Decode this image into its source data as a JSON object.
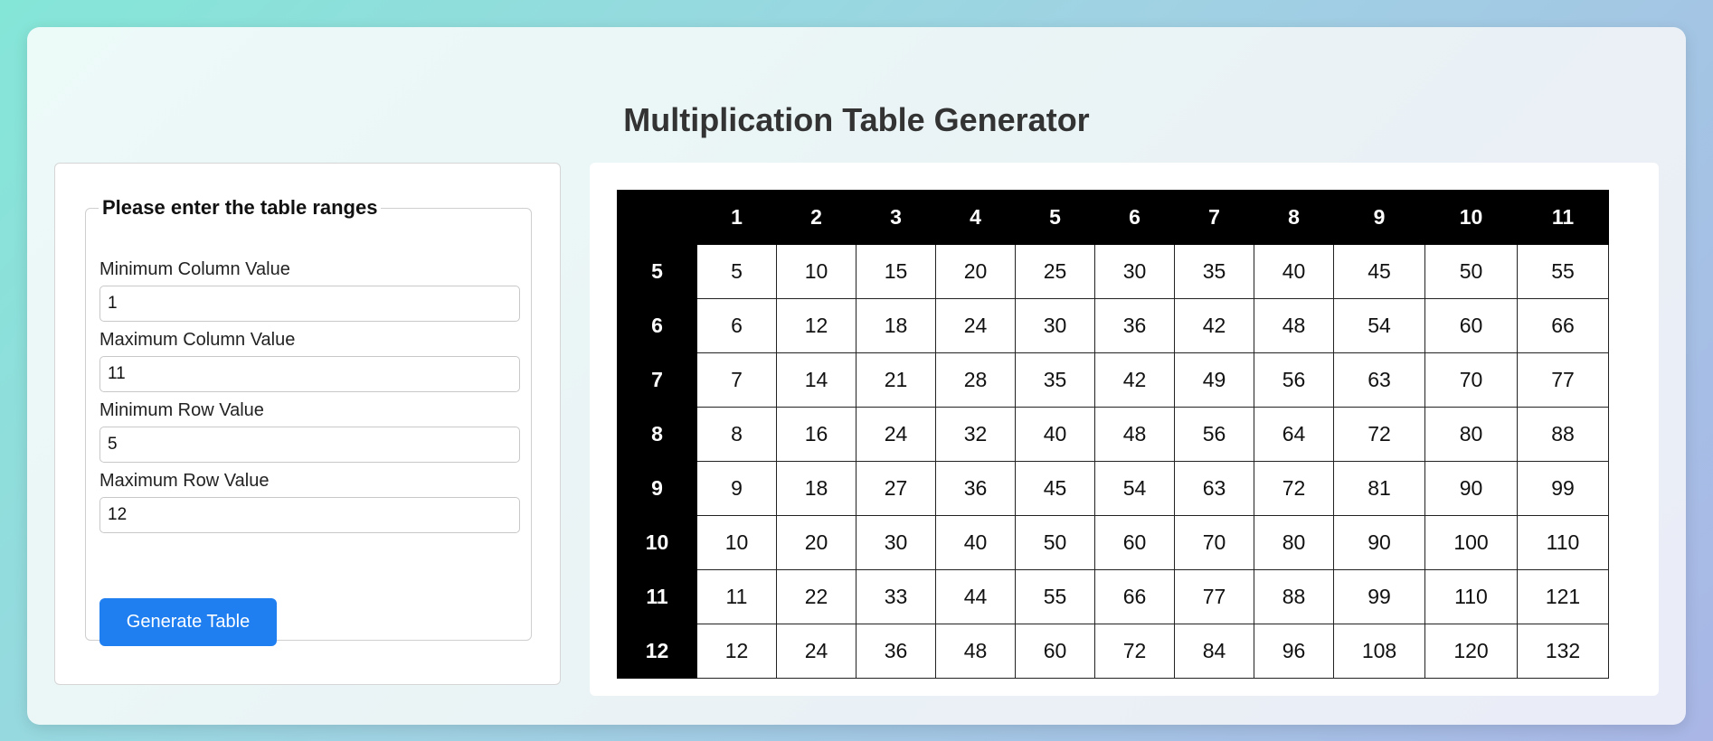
{
  "page": {
    "title": "Multiplication Table Generator"
  },
  "form": {
    "legend": "Please enter the table ranges",
    "fields": [
      {
        "label": "Minimum Column Value",
        "value": "1"
      },
      {
        "label": "Maximum Column Value",
        "value": "11"
      },
      {
        "label": "Minimum Row Value",
        "value": "5"
      },
      {
        "label": "Maximum Row Value",
        "value": "12"
      }
    ],
    "button_label": "Generate Table"
  },
  "table": {
    "column_headers": [
      "1",
      "2",
      "3",
      "4",
      "5",
      "6",
      "7",
      "8",
      "9",
      "10",
      "11"
    ],
    "rows": [
      {
        "header": "5",
        "cells": [
          "5",
          "10",
          "15",
          "20",
          "25",
          "30",
          "35",
          "40",
          "45",
          "50",
          "55"
        ]
      },
      {
        "header": "6",
        "cells": [
          "6",
          "12",
          "18",
          "24",
          "30",
          "36",
          "42",
          "48",
          "54",
          "60",
          "66"
        ]
      },
      {
        "header": "7",
        "cells": [
          "7",
          "14",
          "21",
          "28",
          "35",
          "42",
          "49",
          "56",
          "63",
          "70",
          "77"
        ]
      },
      {
        "header": "8",
        "cells": [
          "8",
          "16",
          "24",
          "32",
          "40",
          "48",
          "56",
          "64",
          "72",
          "80",
          "88"
        ]
      },
      {
        "header": "9",
        "cells": [
          "9",
          "18",
          "27",
          "36",
          "45",
          "54",
          "63",
          "72",
          "81",
          "90",
          "99"
        ]
      },
      {
        "header": "10",
        "cells": [
          "10",
          "20",
          "30",
          "40",
          "50",
          "60",
          "70",
          "80",
          "90",
          "100",
          "110"
        ]
      },
      {
        "header": "11",
        "cells": [
          "11",
          "22",
          "33",
          "44",
          "55",
          "66",
          "77",
          "88",
          "99",
          "110",
          "121"
        ]
      },
      {
        "header": "12",
        "cells": [
          "12",
          "24",
          "36",
          "48",
          "60",
          "72",
          "84",
          "96",
          "108",
          "120",
          "132"
        ]
      }
    ]
  }
}
